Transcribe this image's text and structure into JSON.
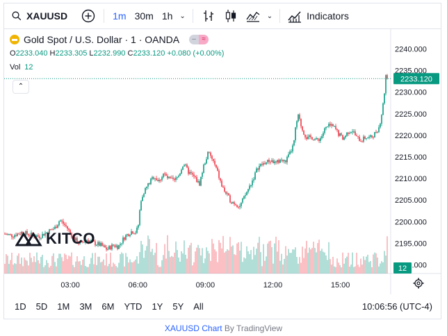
{
  "toolbar": {
    "symbol": "XAUUSD",
    "intervals": [
      "1m",
      "30m",
      "1h"
    ],
    "active_interval": "1m",
    "indicators_label": "Indicators"
  },
  "legend": {
    "title": "Gold Spot / U.S. Dollar · 1 · OANDA",
    "open_label": "O",
    "open": "2233.040",
    "high_label": "H",
    "high": "2233.305",
    "low_label": "L",
    "low": "2232.990",
    "close_label": "C",
    "close": "2233.120",
    "change": "+0.080 (+0.00%)",
    "volume_label": "Vol",
    "volume": "12"
  },
  "watermark": "KITCO",
  "price_scale": {
    "ticks": [
      "2240.000",
      "2235.000",
      "2230.000",
      "2225.000",
      "2220.000",
      "2215.000",
      "2210.000",
      "2205.000",
      "2200.000",
      "2195.000",
      "2190.000"
    ],
    "last_price": "2233.120",
    "last_volume": "12"
  },
  "time_scale": {
    "ticks": [
      "03:00",
      "06:00",
      "09:00",
      "12:00",
      "15:00"
    ]
  },
  "ranges": [
    "1D",
    "5D",
    "1M",
    "3M",
    "6M",
    "YTD",
    "1Y",
    "5Y",
    "All"
  ],
  "clock": "10:06:56 (UTC-4)",
  "attribution": {
    "link": "XAUUSD Chart",
    "suffix": " By TradingView"
  },
  "colors": {
    "up": "#089981",
    "down": "#f23645",
    "accent": "#2962ff",
    "last_price": "#089981"
  },
  "chart_data": {
    "type": "line",
    "title": "Gold Spot / U.S. Dollar · 1 · OANDA",
    "xlabel": "",
    "ylabel": "",
    "ylim": [
      2188,
      2242
    ],
    "x_ticks": [
      "03:00",
      "06:00",
      "09:00",
      "12:00",
      "15:00"
    ],
    "series": [
      {
        "values": [
          [
            0.0,
            2197.2
          ],
          [
            0.4,
            2196.8
          ],
          [
            0.8,
            2197.5
          ],
          [
            1.2,
            2197.0
          ],
          [
            1.6,
            2196.6
          ],
          [
            2.0,
            2197.8
          ],
          [
            2.3,
            2198.6
          ],
          [
            2.5,
            2200.4
          ],
          [
            2.8,
            2198.8
          ],
          [
            3.1,
            2196.2
          ],
          [
            3.4,
            2194.8
          ],
          [
            3.7,
            2195.9
          ],
          [
            4.0,
            2195.1
          ],
          [
            4.3,
            2194.6
          ],
          [
            4.6,
            2193.6
          ],
          [
            4.9,
            2194.6
          ],
          [
            5.1,
            2194.2
          ],
          [
            5.4,
            2196.6
          ],
          [
            5.7,
            2197.8
          ],
          [
            5.9,
            2197.6
          ],
          [
            6.0,
            2199.4
          ],
          [
            6.08,
            2204.0
          ],
          [
            6.2,
            2206.6
          ],
          [
            6.4,
            2208.4
          ],
          [
            6.7,
            2210.6
          ],
          [
            6.9,
            2209.2
          ],
          [
            7.1,
            2211.2
          ],
          [
            7.3,
            2210.0
          ],
          [
            7.6,
            2209.4
          ],
          [
            7.8,
            2210.8
          ],
          [
            8.0,
            2213.6
          ],
          [
            8.2,
            2211.6
          ],
          [
            8.5,
            2210.2
          ],
          [
            8.7,
            2208.6
          ],
          [
            8.9,
            2213.0
          ],
          [
            9.1,
            2216.0
          ],
          [
            9.3,
            2214.2
          ],
          [
            9.5,
            2211.6
          ],
          [
            9.7,
            2208.2
          ],
          [
            9.9,
            2206.4
          ],
          [
            10.1,
            2204.8
          ],
          [
            10.3,
            2204.2
          ],
          [
            10.5,
            2203.6
          ],
          [
            10.7,
            2205.6
          ],
          [
            10.9,
            2207.8
          ],
          [
            11.1,
            2210.0
          ],
          [
            11.3,
            2212.6
          ],
          [
            11.6,
            2213.6
          ],
          [
            11.9,
            2214.2
          ],
          [
            12.1,
            2213.4
          ],
          [
            12.3,
            2214.4
          ],
          [
            12.5,
            2213.8
          ],
          [
            12.7,
            2215.4
          ],
          [
            12.9,
            2218.0
          ],
          [
            13.0,
            2222.6
          ],
          [
            13.1,
            2224.4
          ],
          [
            13.3,
            2221.0
          ],
          [
            13.5,
            2219.2
          ],
          [
            13.7,
            2219.6
          ],
          [
            13.9,
            2218.8
          ],
          [
            14.1,
            2219.4
          ],
          [
            14.3,
            2221.6
          ],
          [
            14.5,
            2222.2
          ],
          [
            14.7,
            2221.8
          ],
          [
            14.9,
            2220.2
          ],
          [
            15.1,
            2219.2
          ],
          [
            15.3,
            2220.8
          ],
          [
            15.5,
            2221.2
          ],
          [
            15.7,
            2219.4
          ],
          [
            15.9,
            2218.8
          ],
          [
            16.1,
            2219.6
          ],
          [
            16.3,
            2219.4
          ],
          [
            16.5,
            2220.4
          ],
          [
            16.7,
            2222.0
          ],
          [
            16.85,
            2226.4
          ],
          [
            16.95,
            2231.2
          ],
          [
            17.0,
            2234.6
          ],
          [
            17.05,
            2233.12
          ]
        ]
      }
    ],
    "volume": {
      "ylim": [
        0,
        80
      ],
      "values": []
    }
  }
}
